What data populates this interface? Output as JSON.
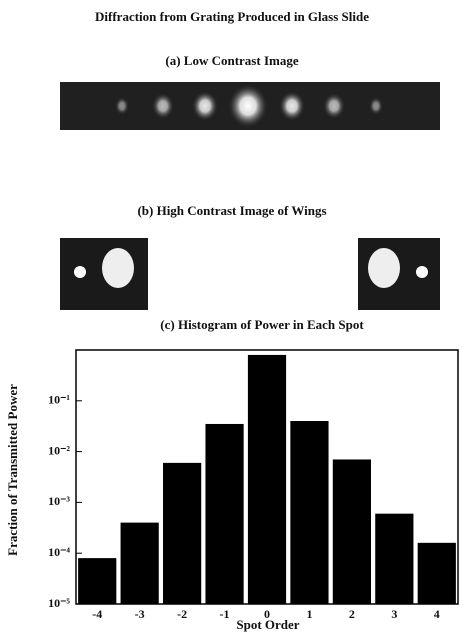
{
  "figure_title": "Diffraction from Grating Produced in Glass Slide",
  "panels": {
    "a": "(a) Low Contrast Image",
    "b": "(b) High Contrast Image of Wings"
  },
  "chart_data": {
    "type": "bar",
    "title": "(c) Histogram of Power in Each Spot",
    "xlabel": "Spot Order",
    "ylabel": "Fraction of Transmitted Power",
    "categories": [
      "-4",
      "-3",
      "-2",
      "-1",
      "0",
      "1",
      "2",
      "3",
      "4"
    ],
    "values": [
      8e-05,
      0.0004,
      0.006,
      0.035,
      0.8,
      0.04,
      0.007,
      0.0006,
      0.00016
    ],
    "color": "#000000",
    "log_scale": true,
    "ylim": [
      1e-05,
      1
    ],
    "yticks": [
      {
        "value": 1e-05,
        "label": "10⁻⁵"
      },
      {
        "value": 0.0001,
        "label": "10⁻⁴"
      },
      {
        "value": 0.001,
        "label": "10⁻³"
      },
      {
        "value": 0.01,
        "label": "10⁻²"
      },
      {
        "value": 0.1,
        "label": "10⁻¹"
      }
    ]
  }
}
